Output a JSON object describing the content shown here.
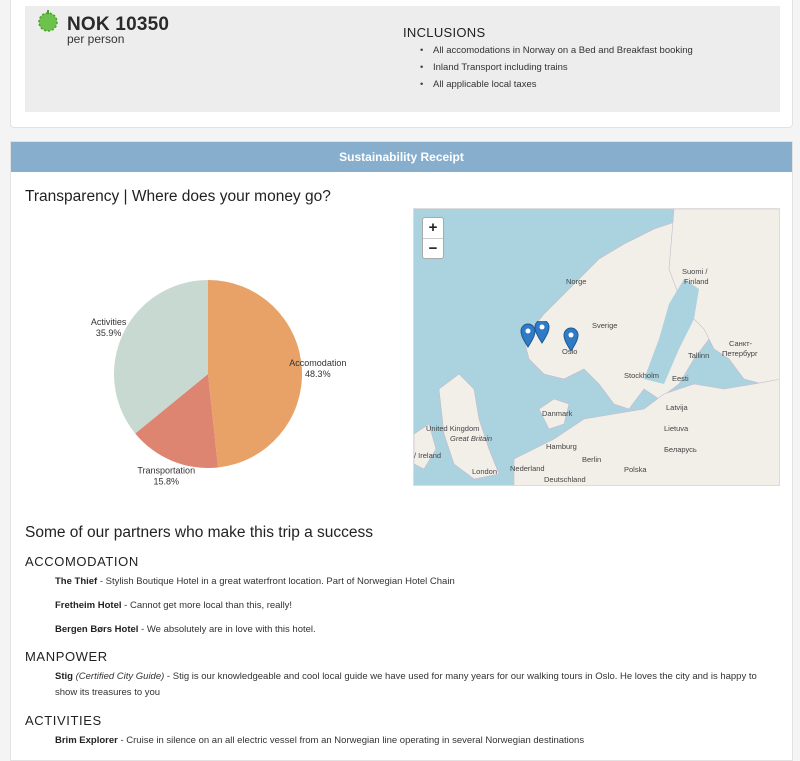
{
  "price": {
    "amount": "NOK 10350",
    "unit": "per person"
  },
  "inclusions": {
    "title": "INCLUSIONS",
    "items": [
      "All accomodations in Norway on a Bed and Breakfast booking",
      "Inland Transport including trains",
      "All applicable local taxes"
    ]
  },
  "banner": "Sustainability Receipt",
  "transparency_title": "Transparency | Where does your money go?",
  "chart_data": {
    "type": "pie",
    "categories": [
      "Accomodation",
      "Transportation",
      "Activities"
    ],
    "values": [
      48.3,
      15.8,
      35.9
    ],
    "labels": [
      "48.3%",
      "15.8%",
      "35.9%"
    ],
    "colors": [
      "#e8a267",
      "#de8572",
      "#c8d9d1"
    ]
  },
  "map": {
    "zoom_in": "+",
    "zoom_out": "−",
    "labels": {
      "norge": "Norge",
      "suomi": "Suomi /",
      "finland": "Finland",
      "sverige": "Sverige",
      "spb1": "Санкт-",
      "spb2": "Петербург",
      "oslo": "Oslo",
      "stockholm": "Stockholm",
      "tallinn": "Tallinn",
      "eesti": "Eesti",
      "latvija": "Latvija",
      "danmark": "Danmark",
      "uk": "United Kingdom",
      "gb": "Great Britain",
      "lietuva": "Lietuva",
      "ireland": "/ Ireland",
      "hamburg": "Hamburg",
      "berlin": "Berlin",
      "belarus": "Беларусь",
      "nederland": "Nederland",
      "london": "London",
      "deutschland": "Deutschland",
      "polska": "Polska"
    }
  },
  "partners_title": "Some of our partners who make this trip a success",
  "categories": {
    "accomodation": "ACCOMODATION",
    "manpower": "MANPOWER",
    "activities": "ACTIVITIES"
  },
  "entries": {
    "thief_name": "The Thief",
    "thief_desc": " - Stylish Boutique Hotel in a great waterfront location. Part of Norwegian Hotel Chain",
    "fretheim_name": "Fretheim Hotel",
    "fretheim_desc": " - Cannot get more local than this, really!",
    "bergen_name": "Bergen Børs Hotel",
    "bergen_desc": " - We absolutely are in love with this hotel.",
    "stig_name": "Stig",
    "stig_role": "(Certified City Guide)",
    "stig_desc": " - Stig is our knowledgeable and cool local guide we have used for many years for our walking tours in Oslo. He loves the city and is happy to show its treasures to you",
    "brim_name": "Brim Explorer",
    "brim_desc": " - Cruise in silence on an all electric vessel from an Norwegian line operating in several Norwegian destinations"
  }
}
